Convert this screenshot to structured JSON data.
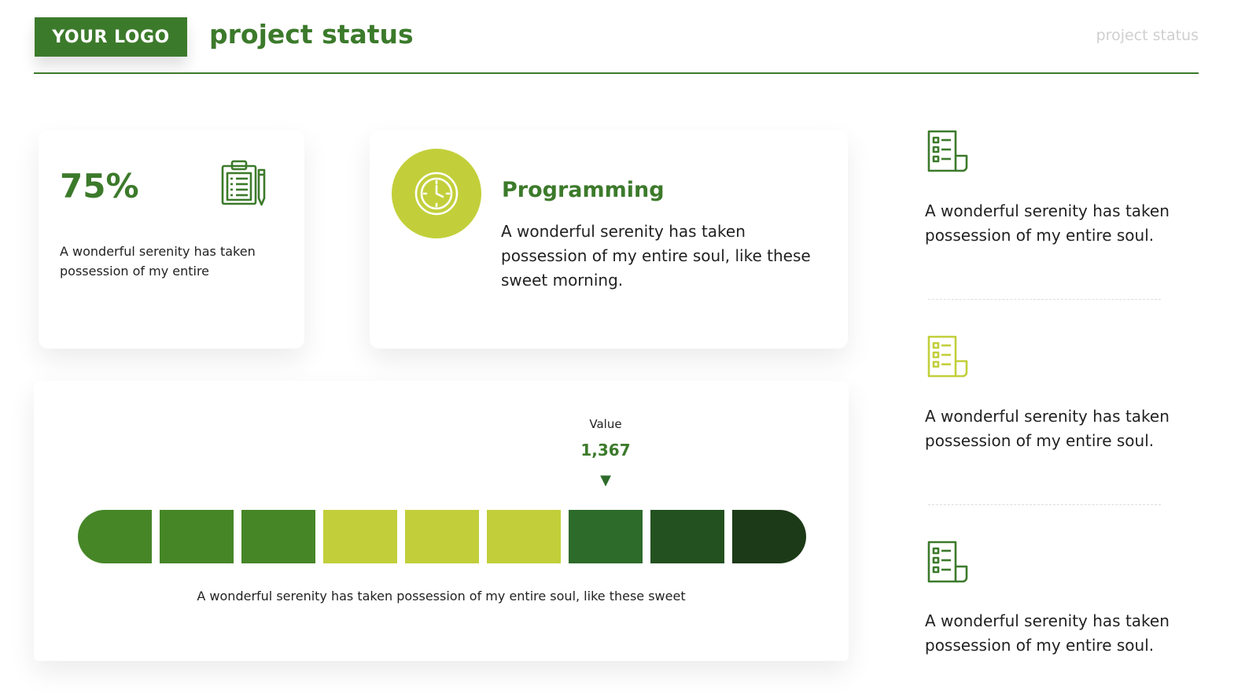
{
  "header": {
    "logo": "YOUR LOGO",
    "title": "project status",
    "right_label": "project status"
  },
  "colors": {
    "primary": "#3c7a2b",
    "lime": "#c2cf3a"
  },
  "progress_card": {
    "value": "75%",
    "icon": "clipboard-icon",
    "description": "A wonderful serenity has taken possession of my entire"
  },
  "programming_card": {
    "icon": "clock-icon",
    "title": "Programming",
    "description": "A wonderful serenity has taken possession of my entire soul, like these sweet morning."
  },
  "bar_card": {
    "value_label": "Value",
    "value": "1,367",
    "marker_segment_index": 6,
    "segment_colors": [
      "#468627",
      "#468627",
      "#468627",
      "#c2cf3a",
      "#c2cf3a",
      "#c2cf3a",
      "#2d6b2b",
      "#23511f",
      "#1c3a17"
    ],
    "description": "A wonderful serenity has taken possession of my entire soul, like these sweet"
  },
  "side_items": [
    {
      "icon": "list-document-icon",
      "icon_color": "#3c7a2b",
      "text": "A wonderful serenity has taken possession of my entire soul."
    },
    {
      "icon": "list-document-icon",
      "icon_color": "#c2cf3a",
      "text": "A wonderful serenity has taken possession of my entire soul."
    },
    {
      "icon": "list-document-icon",
      "icon_color": "#3c7a2b",
      "text": "A wonderful serenity has taken possession of my entire soul."
    }
  ]
}
